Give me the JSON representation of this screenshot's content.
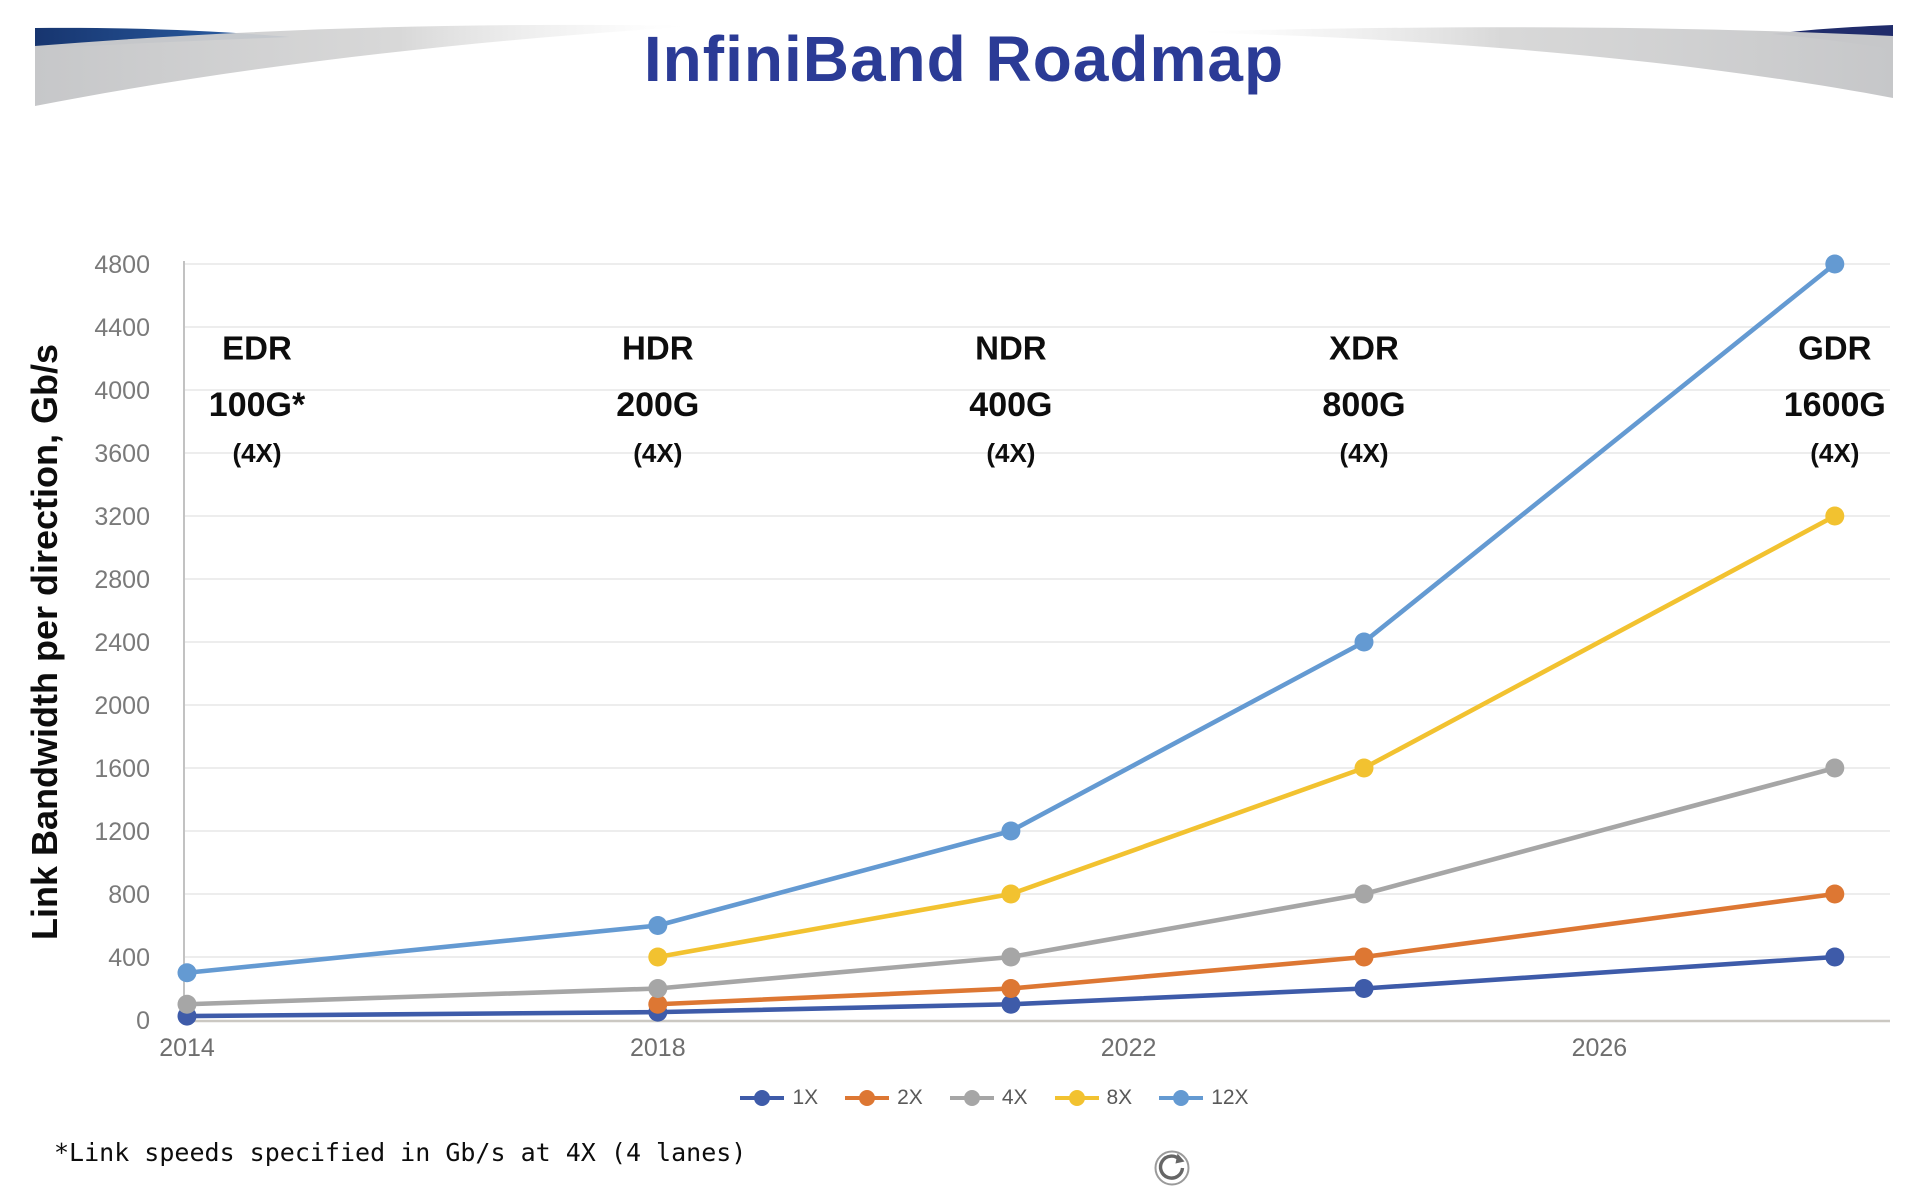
{
  "header": {
    "title": "InfiniBand Roadmap"
  },
  "footnote": "*Link speeds specified in Gb/s at 4X (4 lanes)",
  "icons": {
    "bottom_center": "circular-arrow-icon"
  },
  "colors": {
    "title": "#2B3B96",
    "grid_line": "#E7E7E7",
    "left_axis_line": "#C2C2C2",
    "bottom_axis_line": "#CBC8C2",
    "y_tick_label": "#7A7A7A",
    "x_tick_label": "#6E6E6E",
    "annotation_text": "#0D0D0D",
    "swoosh_gray": "#C7C7C9",
    "swoosh_blue": "#2C63AC",
    "swoosh_navy": "#202C6B"
  },
  "chart_data": {
    "type": "line",
    "title": "InfiniBand Roadmap",
    "ylabel": "Link Bandwidth per direction, Gb/s",
    "xlabel": "",
    "ylim": [
      0,
      4800
    ],
    "yticks": [
      0,
      400,
      800,
      1200,
      1600,
      2000,
      2400,
      2800,
      3200,
      3600,
      4000,
      4400,
      4800
    ],
    "xticks": [
      2014,
      2018,
      2022,
      2026
    ],
    "xlim": [
      2014,
      2028.5
    ],
    "grid": true,
    "legend_position": "bottom",
    "marker": "circle",
    "series": [
      {
        "name": "1X",
        "color": "#3E5BA9",
        "points": [
          {
            "x": 2014,
            "y": 25
          },
          {
            "x": 2018,
            "y": 50
          },
          {
            "x": 2021,
            "y": 100
          },
          {
            "x": 2024,
            "y": 200
          },
          {
            "x": 2028,
            "y": 400
          }
        ]
      },
      {
        "name": "2X",
        "color": "#DD7733",
        "points": [
          {
            "x": 2018,
            "y": 100
          },
          {
            "x": 2021,
            "y": 200
          },
          {
            "x": 2024,
            "y": 400
          },
          {
            "x": 2028,
            "y": 800
          }
        ]
      },
      {
        "name": "4X",
        "color": "#A6A6A6",
        "points": [
          {
            "x": 2014,
            "y": 100
          },
          {
            "x": 2018,
            "y": 200
          },
          {
            "x": 2021,
            "y": 400
          },
          {
            "x": 2024,
            "y": 800
          },
          {
            "x": 2028,
            "y": 1600
          }
        ]
      },
      {
        "name": "8X",
        "color": "#F2C230",
        "points": [
          {
            "x": 2018,
            "y": 400
          },
          {
            "x": 2021,
            "y": 800
          },
          {
            "x": 2024,
            "y": 1600
          },
          {
            "x": 2028,
            "y": 3200
          }
        ]
      },
      {
        "name": "12X",
        "color": "#649AD2",
        "points": [
          {
            "x": 2014,
            "y": 300
          },
          {
            "x": 2018,
            "y": 600
          },
          {
            "x": 2021,
            "y": 1200
          },
          {
            "x": 2024,
            "y": 2400
          },
          {
            "x": 2028,
            "y": 4800
          }
        ]
      }
    ],
    "annotations": [
      {
        "generation": "EDR",
        "speed": "100G*",
        "lanes": "(4X)",
        "year": 2014
      },
      {
        "generation": "HDR",
        "speed": "200G",
        "lanes": "(4X)",
        "year": 2018
      },
      {
        "generation": "NDR",
        "speed": "400G",
        "lanes": "(4X)",
        "year": 2021
      },
      {
        "generation": "XDR",
        "speed": "800G",
        "lanes": "(4X)",
        "year": 2024
      },
      {
        "generation": "GDR",
        "speed": "1600G",
        "lanes": "(4X)",
        "year": 2028
      }
    ]
  }
}
